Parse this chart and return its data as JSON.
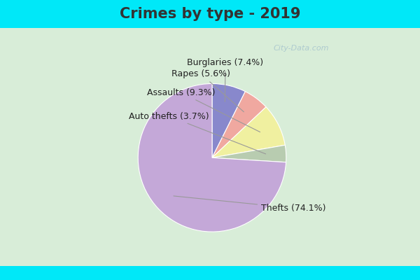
{
  "title": "Crimes by type - 2019",
  "ordered_labels": [
    "Burglaries",
    "Rapes",
    "Assaults",
    "Auto thefts",
    "Thefts"
  ],
  "ordered_values": [
    7.4,
    5.6,
    9.3,
    3.7,
    74.1
  ],
  "ordered_colors": [
    "#8888cc",
    "#f0a8a0",
    "#f0f0a0",
    "#b8ccb0",
    "#c4a8d8"
  ],
  "bg_cyan": "#00e8f8",
  "bg_green": "#d8edd8",
  "title_color": "#333333",
  "title_fontsize": 15,
  "label_fontsize": 9,
  "watermark": "City-Data.com",
  "label_params": [
    {
      "text": "Burglaries (7.4%)",
      "xt": 0.18,
      "yt": 1.28,
      "wi": 0
    },
    {
      "text": "Rapes (5.6%)",
      "xt": -0.15,
      "yt": 1.13,
      "wi": 1
    },
    {
      "text": "Assaults (9.3%)",
      "xt": -0.42,
      "yt": 0.88,
      "wi": 2
    },
    {
      "text": "Auto thefts (3.7%)",
      "xt": -0.58,
      "yt": 0.56,
      "wi": 3
    },
    {
      "text": "Thefts (74.1%)",
      "xt": 1.1,
      "yt": -0.68,
      "wi": 4
    }
  ]
}
